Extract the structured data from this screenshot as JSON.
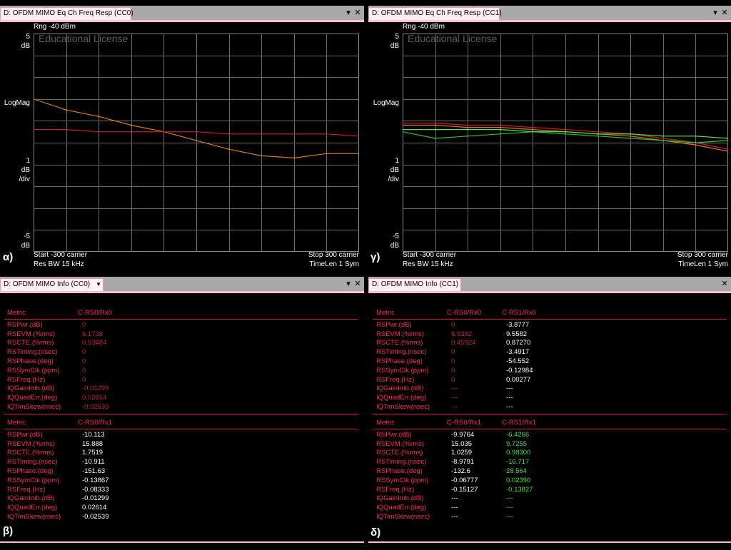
{
  "panes": {
    "cc0_freq": {
      "title": "D: OFDM MIMO Eq Ch Freq Resp (CC0)",
      "caption": "α)"
    },
    "cc1_freq": {
      "title": "D: OFDM MIMO Eq Ch Freq Resp (CC1)",
      "caption": "γ)"
    },
    "cc0_info": {
      "title": "D: OFDM MIMO Info (CC0)",
      "caption": "β)"
    },
    "cc1_info": {
      "title": "D: OFDM MIMO Info (CC1)",
      "caption": "δ)"
    }
  },
  "plot_labels": {
    "rng": "Rng -40 dBm",
    "watermark": "Educational License",
    "top_val": "5",
    "top_unit": "dB",
    "mid_label": "LogMag",
    "div_val": "1",
    "div_unit": "dB",
    "div_suffix": "/div",
    "bottom_val": "-5",
    "bottom_unit": "dB",
    "start": "Start -300  carrier",
    "resbw": "Res BW 15 kHz",
    "stop": "Stop 300  carrier",
    "timelen": "TimeLen 1  Sym"
  },
  "chart_data": [
    {
      "type": "line",
      "xlabel": "carrier",
      "xlim": [
        -300,
        300
      ],
      "ylim": [
        -5,
        5
      ],
      "ylabel": "LogMag (dB)",
      "x": [
        -300,
        -240,
        -180,
        -120,
        -60,
        0,
        60,
        120,
        180,
        240,
        300
      ],
      "series": [
        {
          "color": "#d97a14",
          "values": [
            2.0,
            1.5,
            1.2,
            0.8,
            0.5,
            0.1,
            -0.3,
            -0.6,
            -0.7,
            -0.5,
            -0.5
          ]
        },
        {
          "color": "#c8202a",
          "values": [
            0.6,
            0.6,
            0.5,
            0.5,
            0.5,
            0.5,
            0.4,
            0.4,
            0.4,
            0.4,
            0.3
          ]
        }
      ],
      "grid": true
    },
    {
      "type": "line",
      "xlabel": "carrier",
      "xlim": [
        -300,
        300
      ],
      "ylim": [
        -5,
        5
      ],
      "ylabel": "LogMag (dB)",
      "x": [
        -300,
        -240,
        -180,
        -120,
        -60,
        0,
        60,
        120,
        180,
        240,
        300
      ],
      "series": [
        {
          "color": "#d97a14",
          "values": [
            0.8,
            0.8,
            0.7,
            0.7,
            0.6,
            0.5,
            0.4,
            0.3,
            0.1,
            -0.1,
            -0.4
          ]
        },
        {
          "color": "#c8202a",
          "values": [
            0.9,
            0.9,
            0.8,
            0.8,
            0.7,
            0.6,
            0.5,
            0.4,
            0.2,
            0.0,
            -0.3
          ]
        },
        {
          "color": "#22c422",
          "values": [
            0.5,
            0.2,
            0.3,
            0.4,
            0.5,
            0.4,
            0.3,
            0.2,
            0.1,
            0.0,
            0.1
          ]
        },
        {
          "color": "#58e858",
          "values": [
            0.6,
            0.6,
            0.6,
            0.6,
            0.5,
            0.5,
            0.4,
            0.4,
            0.3,
            0.3,
            0.2
          ]
        }
      ],
      "grid": true
    }
  ],
  "metric_names": [
    "RSPwr.(dB)",
    "RSEVM.(%rms)",
    "RSCTE.(%rms)",
    "RSTiming.(nsec)",
    "RSPhase.(deg)",
    "RSSymClk.(ppm)",
    "RSFreq.(Hz)",
    "IQGainImb.(dB)",
    "IQQuadErr.(deg)",
    "IQTimSkew(nsec)"
  ],
  "cc0": {
    "t1": {
      "h0": "Metric",
      "h1": "C-RS0/Rx0",
      "c1": [
        "0",
        "6.1738",
        "0.53484",
        "0",
        "0",
        "0",
        "0",
        "-0.01299",
        "0.02614",
        "-0.02539"
      ]
    },
    "t2": {
      "h0": "Metric",
      "h1": "C-RS0/Rx1",
      "c1": [
        "-10.113",
        "15.888",
        "1.7519",
        "-10.911",
        "-151.63",
        "-0.13867",
        "-0.08333",
        "-0.01299",
        "0.02614",
        "-0.02539"
      ]
    }
  },
  "cc1": {
    "t1": {
      "h0": "Metric",
      "h1": "C-RS0/Rx0",
      "h2": "C-RS1/Rx0",
      "c1": [
        "0",
        "6.9392",
        "0.45924",
        "0",
        "0",
        "0",
        "0",
        "---",
        "---",
        "---"
      ],
      "c2": [
        "-3.8777",
        "9.5582",
        "0.87270",
        "-3.4917",
        "-54.552",
        "-0.12984",
        "0.00277",
        "---",
        "---",
        "---"
      ]
    },
    "t2": {
      "h0": "Metric",
      "h1": "C-RS0/Rx1",
      "h2": "C-RS1/Rx1",
      "c1": [
        "-9.9764",
        "15.035",
        "1.0259",
        "-8.9791",
        "-132.6",
        "-0.06777",
        "-0.15127",
        "---",
        "---",
        "---"
      ],
      "c2": [
        "-6.4266",
        "9.7255",
        "0.98300",
        "-16.717",
        "28.564",
        "0.02390",
        "-0.13827",
        "---",
        "---",
        "---"
      ]
    }
  },
  "colors": {
    "metric": "#ff2a55",
    "value_white": "#ffffff",
    "value_dim": "#c0203c",
    "value_green": "#44e044",
    "trace_orange": "#d97a14",
    "trace_red": "#c8202a",
    "trace_green": "#22c422"
  }
}
